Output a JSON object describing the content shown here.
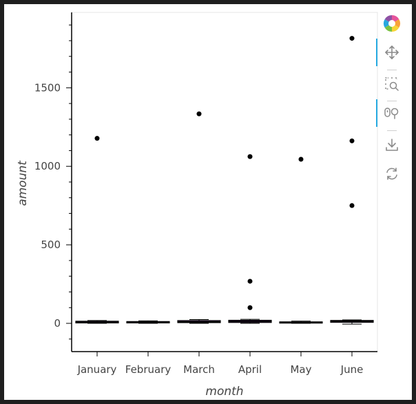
{
  "chart_data": {
    "type": "box",
    "xlabel": "month",
    "ylabel": "amount",
    "categories": [
      "January",
      "February",
      "March",
      "April",
      "May",
      "June"
    ],
    "ylim": [
      -180,
      1980
    ],
    "yticks": [
      0,
      500,
      1000,
      1500
    ],
    "boxes": [
      {
        "category": "January",
        "q1": 2,
        "median": 8,
        "q3": 14,
        "whisker_low": 0,
        "whisker_high": 18
      },
      {
        "category": "February",
        "q1": 2,
        "median": 7,
        "q3": 12,
        "whisker_low": 0,
        "whisker_high": 16
      },
      {
        "category": "March",
        "q1": 4,
        "median": 10,
        "q3": 18,
        "whisker_low": 0,
        "whisker_high": 24
      },
      {
        "category": "April",
        "q1": 5,
        "median": 12,
        "q3": 20,
        "whisker_low": 0,
        "whisker_high": 26
      },
      {
        "category": "May",
        "q1": 1,
        "median": 5,
        "q3": 10,
        "whisker_low": 0,
        "whisker_high": 14
      },
      {
        "category": "June",
        "q1": 6,
        "median": 13,
        "q3": 19,
        "whisker_low": -5,
        "whisker_high": 22
      }
    ],
    "outliers": [
      {
        "category": "January",
        "value": 1178
      },
      {
        "category": "March",
        "value": 1334
      },
      {
        "category": "April",
        "value": 1062
      },
      {
        "category": "April",
        "value": 268
      },
      {
        "category": "April",
        "value": 100
      },
      {
        "category": "May",
        "value": 1045
      },
      {
        "category": "June",
        "value": 1815
      },
      {
        "category": "June",
        "value": 1162
      },
      {
        "category": "June",
        "value": 750
      }
    ],
    "colors": {
      "box": "#30123b",
      "outlier": "#000000",
      "axis": "#000000"
    }
  },
  "toolbar": {
    "tools": [
      {
        "name": "logo-icon",
        "active": false
      },
      {
        "name": "pan-icon",
        "active": true
      },
      {
        "name": "box-zoom-icon",
        "active": false
      },
      {
        "name": "wheel-zoom-icon",
        "active": true
      },
      {
        "name": "save-icon",
        "active": false
      },
      {
        "name": "reset-icon",
        "active": false
      }
    ]
  }
}
